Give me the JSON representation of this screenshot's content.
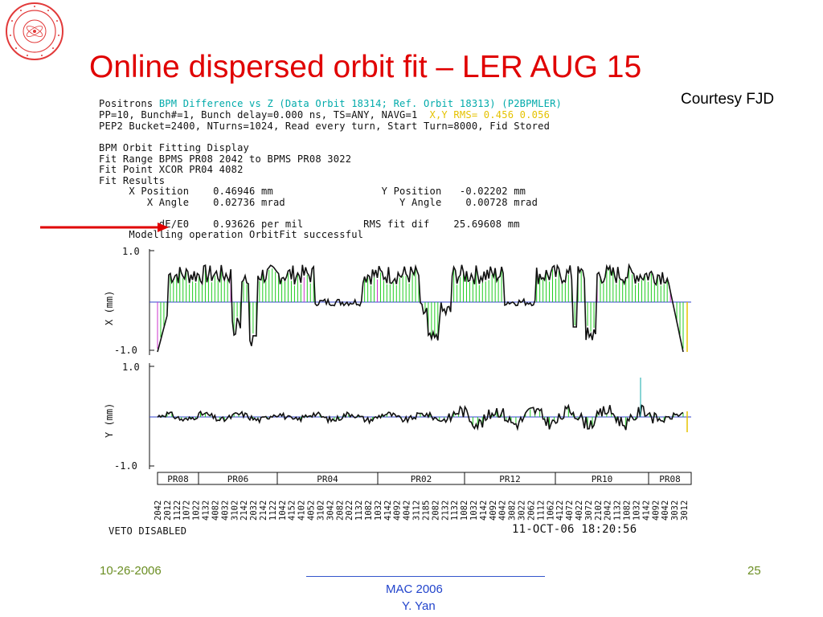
{
  "slide": {
    "title": "Online dispersed orbit fit – LER AUG 15",
    "courtesy": "Courtesy FJD",
    "footer_date": "10-26-2006",
    "footer_page": "25",
    "footer_event": "MAC 2006",
    "footer_author": "Y. Yan"
  },
  "readout": {
    "line1_prefix": "Positrons ",
    "line1_cyan": "BPM Difference vs Z (Data Orbit 18314; Ref. Orbit 18313) (P2BPMLER)",
    "line2_prefix": "PP=10, Bunch#=1, Bunch delay=0.000 ns, TS=ANY, NAVG=1  ",
    "line2_yellow": "X,Y RMS= 0.456 0.056",
    "line3": "PEP2 Bucket=2400, NTurns=1024, Read every turn, Start Turn=8000, Fid Stored",
    "line4": "BPM Orbit Fitting Display",
    "line5": "Fit Range BPMS PR08 2042 to BPMS PR08 3022",
    "line6": "Fit Point XCOR PR04 4082",
    "line7": "Fit Results",
    "line8": "     X Position    0.46946 mm                  Y Position   -0.02202 mm",
    "line9": "        X Angle    0.02736 mrad                   Y Angle    0.00728 mrad",
    "line10": "          dE/E0    0.93626 per mil          RMS fit dif    25.69608 mm",
    "line11": "     Modelling operation OrbitFit successful"
  },
  "plot": {
    "x_axis_label": "X  (mm)",
    "y_axis_label": "Y  (mm)",
    "x_top_tick": "1.0",
    "x_bottom_tick": "-1.0",
    "y_top_tick": "1.0",
    "y_bottom_tick": "-1.0",
    "regions": [
      "PR08",
      "PR06",
      "PR04",
      "PR02",
      "PR12",
      "PR10",
      "PR08"
    ],
    "bpm_labels": [
      "2042",
      "2012",
      "1122",
      "1072",
      "1022",
      "4132",
      "4082",
      "4032",
      "3102",
      "2142",
      "2032",
      "2142",
      "1122",
      "1042",
      "4152",
      "4102",
      "4052",
      "3102",
      "3042",
      "2082",
      "2022",
      "1132",
      "1082",
      "1032",
      "4142",
      "4092",
      "4042",
      "3112",
      "2185",
      "2082",
      "2132",
      "1132",
      "1082",
      "1032",
      "4142",
      "4092",
      "4042",
      "3082",
      "3022",
      "2062",
      "1112",
      "1062",
      "4122",
      "4072",
      "4022",
      "3072",
      "2102",
      "2042",
      "1132",
      "1082",
      "1032",
      "4142",
      "4092",
      "4042",
      "3032",
      "3012"
    ],
    "veto": "VETO DISABLED",
    "timestamp": "11-OCT-06 18:20:56"
  },
  "colors": {
    "title": "#e00000",
    "cyan_text": "#00aaaa",
    "yellow_text": "#e5c200",
    "fit_bars": "#22cc22",
    "magenta": "#cc33cc",
    "arrow": "#e00000",
    "footer_green": "#6b8e23",
    "footer_blue": "#2244cc"
  }
}
